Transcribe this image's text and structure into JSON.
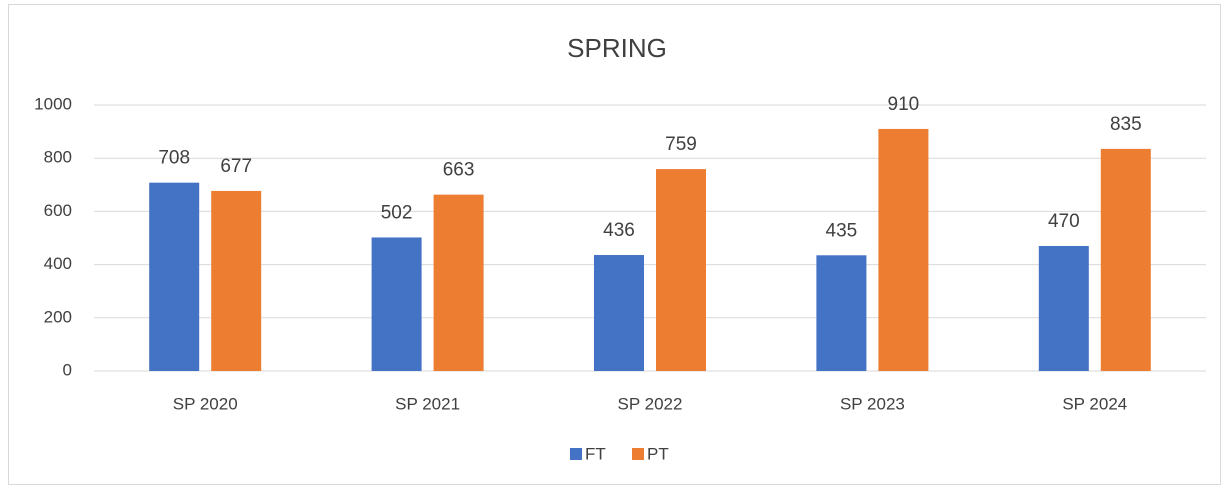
{
  "chart_data": {
    "type": "bar",
    "title": "SPRING",
    "categories": [
      "SP 2020",
      "SP 2021",
      "SP 2022",
      "SP 2023",
      "SP 2024"
    ],
    "series": [
      {
        "name": "FT",
        "color": "#4472c4",
        "values": [
          708,
          502,
          436,
          435,
          470
        ]
      },
      {
        "name": "PT",
        "color": "#ed7d31",
        "values": [
          677,
          663,
          759,
          910,
          835
        ]
      }
    ],
    "ylim": [
      0,
      1000
    ],
    "yticks": [
      0,
      200,
      400,
      600,
      800,
      1000
    ],
    "grid": true,
    "legend": "bottom"
  }
}
